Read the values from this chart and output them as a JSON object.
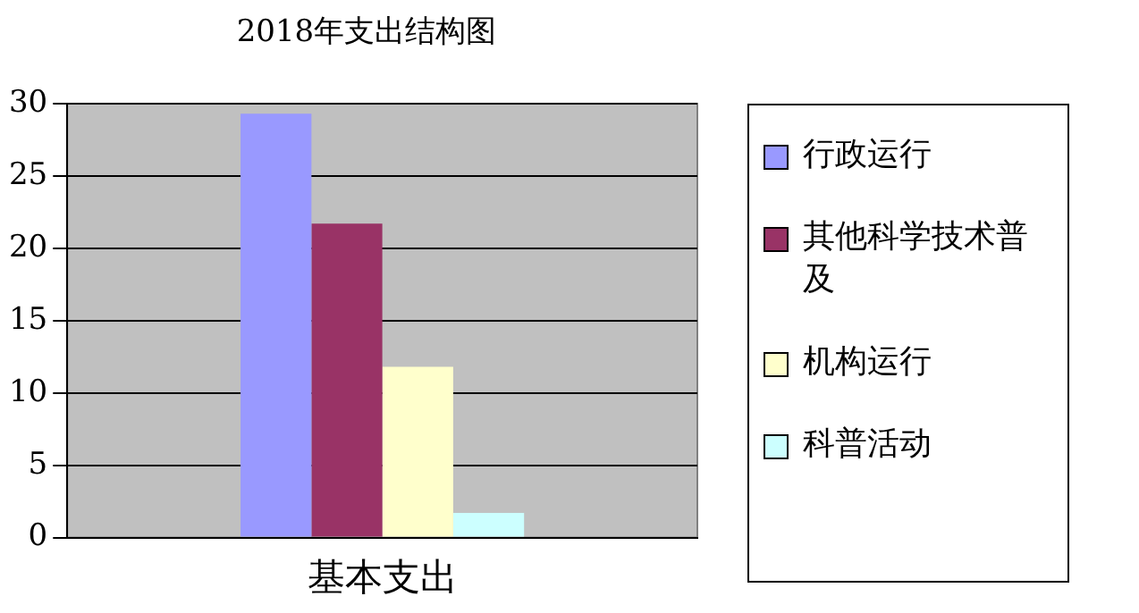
{
  "chart_data": {
    "type": "bar",
    "title": "2018年支出结构图",
    "categories": [
      "基本支出"
    ],
    "series": [
      {
        "name": "行政运行",
        "color": "#9999ff",
        "values": [
          29.3
        ]
      },
      {
        "name": "其他科学技术普及",
        "color": "#993366",
        "values": [
          21.7
        ]
      },
      {
        "name": "机构运行",
        "color": "#ffffcc",
        "values": [
          11.8
        ]
      },
      {
        "name": "科普活动",
        "color": "#ccffff",
        "values": [
          1.7
        ]
      }
    ],
    "ylim": [
      0,
      30
    ],
    "yticks": [
      0,
      5,
      10,
      15,
      20,
      25,
      30
    ],
    "grid": "y",
    "legend": "right"
  }
}
